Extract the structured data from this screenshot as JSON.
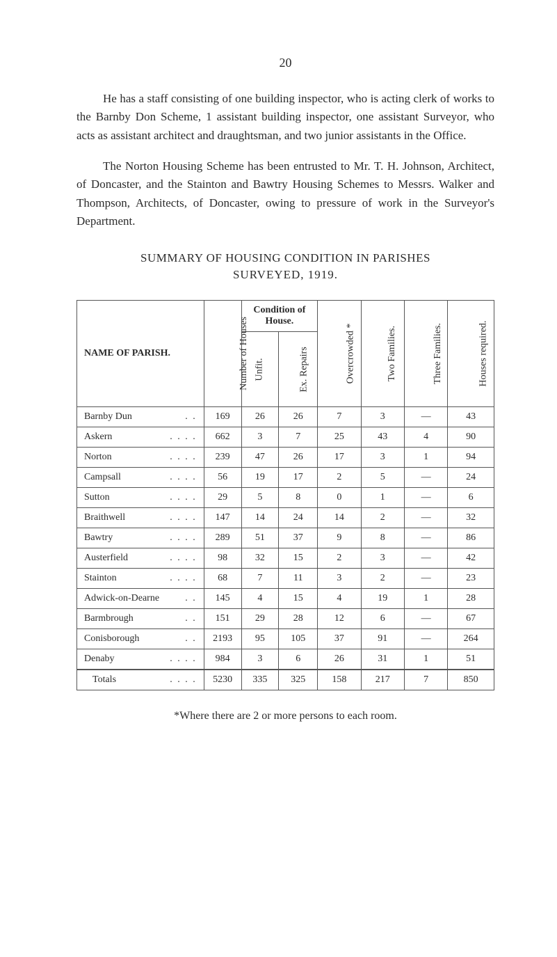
{
  "page_number": "20",
  "paragraphs": {
    "p1": "He has a staff consisting of one building inspector, who is acting clerk of works to the Barnby Don Scheme, 1 assistant building inspector, one assistant Surveyor, who acts as assistant architect and draughtsman, and two junior assistants in the Office.",
    "p2": "The Norton Housing Scheme has been entrusted to Mr. T. H. Johnson, Architect, of Doncaster, and the Stainton and Bawtry Housing Schemes to Messrs. Walker and Thompson, Architects, of Doncaster, owing to pressure of work in the Surveyor's Department."
  },
  "heading": "SUMMARY OF HOUSING CONDITION IN PARISHES",
  "subheading": "SURVEYED, 1919.",
  "table": {
    "head": {
      "name": "NAME OF PARISH.",
      "num_houses": "Number of Houses",
      "condition_group": "Condition of House.",
      "unfit": "Unfit.",
      "ex_repairs": "Ex. Repairs",
      "overcrowded": "Overcrowded *",
      "two_fam": "Two Families.",
      "three_fam": "Three Families.",
      "houses_req": "Houses required."
    },
    "rows": [
      {
        "name": "Barnby Dun",
        "dots": ". .",
        "num": "169",
        "unfit": "26",
        "repairs": "26",
        "over": "7",
        "two": "3",
        "three": "—",
        "req": "43"
      },
      {
        "name": "Askern",
        "dots": ". .      . .",
        "num": "662",
        "unfit": "3",
        "repairs": "7",
        "over": "25",
        "two": "43",
        "three": "4",
        "req": "90"
      },
      {
        "name": "Norton",
        "dots": ". .      . .",
        "num": "239",
        "unfit": "47",
        "repairs": "26",
        "over": "17",
        "two": "3",
        "three": "1",
        "req": "94"
      },
      {
        "name": "Campsall",
        "dots": ". .      . .",
        "num": "56",
        "unfit": "19",
        "repairs": "17",
        "over": "2",
        "two": "5",
        "three": "—",
        "req": "24"
      },
      {
        "name": "Sutton",
        "dots": ". .      . .",
        "num": "29",
        "unfit": "5",
        "repairs": "8",
        "over": "0",
        "two": "1",
        "three": "—",
        "req": "6"
      },
      {
        "name": "Braithwell",
        "dots": ". .      . .",
        "num": "147",
        "unfit": "14",
        "repairs": "24",
        "over": "14",
        "two": "2",
        "three": "—",
        "req": "32"
      },
      {
        "name": "Bawtry",
        "dots": ". .      . .",
        "num": "289",
        "unfit": "51",
        "repairs": "37",
        "over": "9",
        "two": "8",
        "three": "—",
        "req": "86"
      },
      {
        "name": "Austerfield",
        "dots": ". .      . .",
        "num": "98",
        "unfit": "32",
        "repairs": "15",
        "over": "2",
        "two": "3",
        "three": "—",
        "req": "42"
      },
      {
        "name": "Stainton",
        "dots": ". .      . .",
        "num": "68",
        "unfit": "7",
        "repairs": "11",
        "over": "3",
        "two": "2",
        "three": "—",
        "req": "23"
      },
      {
        "name": "Adwick-on-Dearne",
        "dots": ". .",
        "num": "145",
        "unfit": "4",
        "repairs": "15",
        "over": "4",
        "two": "19",
        "three": "1",
        "req": "28"
      },
      {
        "name": "Barmbrough",
        "dots": ". .",
        "num": "151",
        "unfit": "29",
        "repairs": "28",
        "over": "12",
        "two": "6",
        "three": "—",
        "req": "67"
      },
      {
        "name": "Conisborough",
        "dots": ". .",
        "num": "2193",
        "unfit": "95",
        "repairs": "105",
        "over": "37",
        "two": "91",
        "three": "—",
        "req": "264"
      },
      {
        "name": "Denaby",
        "dots": ". .      . .",
        "num": "984",
        "unfit": "3",
        "repairs": "6",
        "over": "26",
        "two": "31",
        "three": "1",
        "req": "51"
      }
    ],
    "totals": {
      "name": "Totals",
      "dots": ". .      . .",
      "num": "5230",
      "unfit": "335",
      "repairs": "325",
      "over": "158",
      "two": "217",
      "three": "7",
      "req": "850"
    }
  },
  "footnote": "*Where there are 2 or more persons to each room."
}
